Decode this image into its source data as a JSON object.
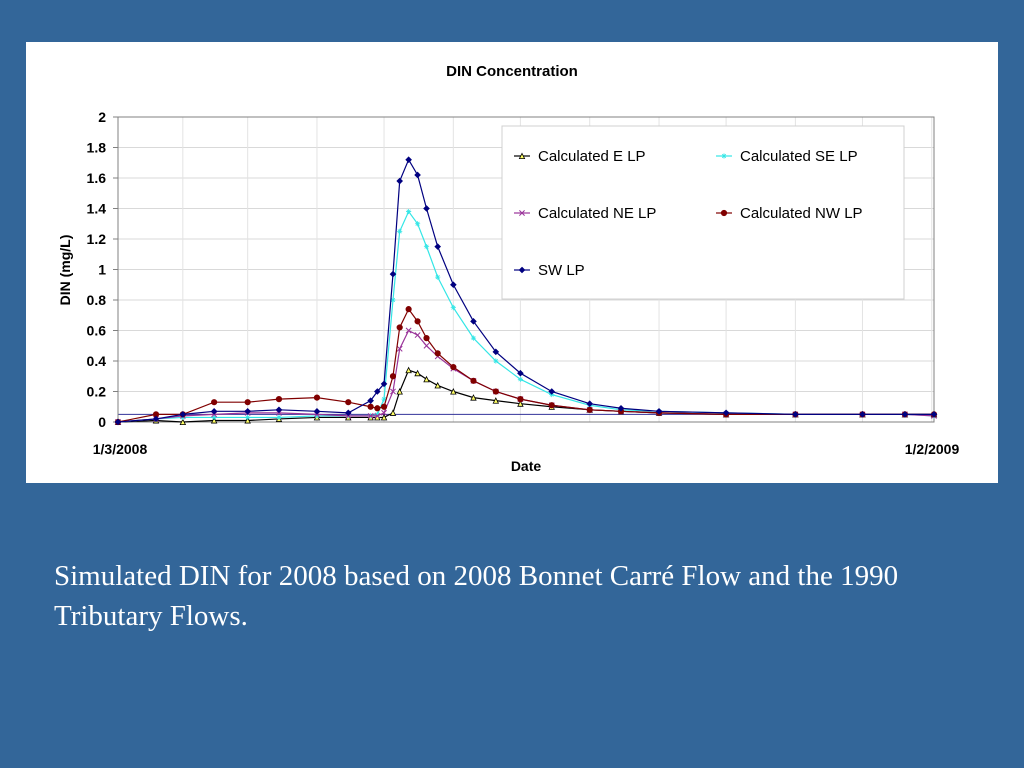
{
  "chart_data": {
    "type": "line",
    "title": "DIN Concentration",
    "xlabel": "Date",
    "ylabel": "DIN (mg/L)",
    "ylim": [
      0,
      2
    ],
    "yticks": [
      "0",
      "0.2",
      "0.4",
      "0.6",
      "0.8",
      "1",
      "1.2",
      "1.4",
      "1.6",
      "1.8",
      "2"
    ],
    "xlim": [
      "2008-01-03",
      "2009-01-02"
    ],
    "xtick_labels": [
      "1/3/2008",
      "1/2/2009"
    ],
    "grid": true,
    "legend_position": "top-right",
    "horizontal_reference_line": 0.05,
    "x": [
      "2008-01-03",
      "2008-01-20",
      "2008-02-01",
      "2008-02-15",
      "2008-03-01",
      "2008-03-15",
      "2008-04-01",
      "2008-04-15",
      "2008-04-25",
      "2008-04-28",
      "2008-05-01",
      "2008-05-05",
      "2008-05-08",
      "2008-05-12",
      "2008-05-16",
      "2008-05-20",
      "2008-05-25",
      "2008-06-01",
      "2008-06-10",
      "2008-06-20",
      "2008-07-01",
      "2008-07-15",
      "2008-08-01",
      "2008-08-15",
      "2008-09-01",
      "2008-10-01",
      "2008-11-01",
      "2008-12-01",
      "2008-12-20",
      "2009-01-02"
    ],
    "series": [
      {
        "name": "Calculated E LP",
        "color": "#000000",
        "fill": "#ffff66",
        "marker": "triangle",
        "values": [
          0.0,
          0.01,
          0.0,
          0.01,
          0.01,
          0.02,
          0.03,
          0.03,
          0.03,
          0.03,
          0.03,
          0.06,
          0.2,
          0.34,
          0.32,
          0.28,
          0.24,
          0.2,
          0.16,
          0.14,
          0.12,
          0.1,
          0.08,
          0.07,
          0.06,
          0.05,
          0.05,
          0.05,
          0.05,
          0.05
        ]
      },
      {
        "name": "Calculated SE LP",
        "color": "#33e6e6",
        "marker": "star",
        "values": [
          0.0,
          0.02,
          0.03,
          0.03,
          0.03,
          0.03,
          0.04,
          0.04,
          0.04,
          0.05,
          0.15,
          0.8,
          1.25,
          1.38,
          1.3,
          1.15,
          0.95,
          0.75,
          0.55,
          0.4,
          0.28,
          0.18,
          0.11,
          0.08,
          0.07,
          0.06,
          0.05,
          0.05,
          0.05,
          0.04
        ]
      },
      {
        "name": "Calculated NE LP",
        "color": "#993399",
        "marker": "x",
        "values": [
          0.0,
          0.02,
          0.04,
          0.05,
          0.06,
          0.06,
          0.05,
          0.04,
          0.04,
          0.04,
          0.06,
          0.2,
          0.48,
          0.6,
          0.57,
          0.5,
          0.43,
          0.35,
          0.27,
          0.2,
          0.15,
          0.11,
          0.08,
          0.07,
          0.06,
          0.05,
          0.05,
          0.05,
          0.05,
          0.04
        ]
      },
      {
        "name": "Calculated NW LP",
        "color": "#800000",
        "marker": "circle",
        "values": [
          0.0,
          0.05,
          0.05,
          0.13,
          0.13,
          0.15,
          0.16,
          0.13,
          0.1,
          0.09,
          0.1,
          0.3,
          0.62,
          0.74,
          0.66,
          0.55,
          0.45,
          0.36,
          0.27,
          0.2,
          0.15,
          0.11,
          0.08,
          0.07,
          0.06,
          0.05,
          0.05,
          0.05,
          0.05,
          0.05
        ]
      },
      {
        "name": "SW LP",
        "color": "#000080",
        "marker": "diamond",
        "values": [
          0.0,
          0.02,
          0.05,
          0.07,
          0.07,
          0.08,
          0.07,
          0.06,
          0.14,
          0.2,
          0.25,
          0.97,
          1.58,
          1.72,
          1.62,
          1.4,
          1.15,
          0.9,
          0.66,
          0.46,
          0.32,
          0.2,
          0.12,
          0.09,
          0.07,
          0.06,
          0.05,
          0.05,
          0.05,
          0.05
        ]
      }
    ]
  },
  "caption": "Simulated DIN for 2008 based on 2008 Bonnet Carré Flow and the 1990 Tributary Flows."
}
